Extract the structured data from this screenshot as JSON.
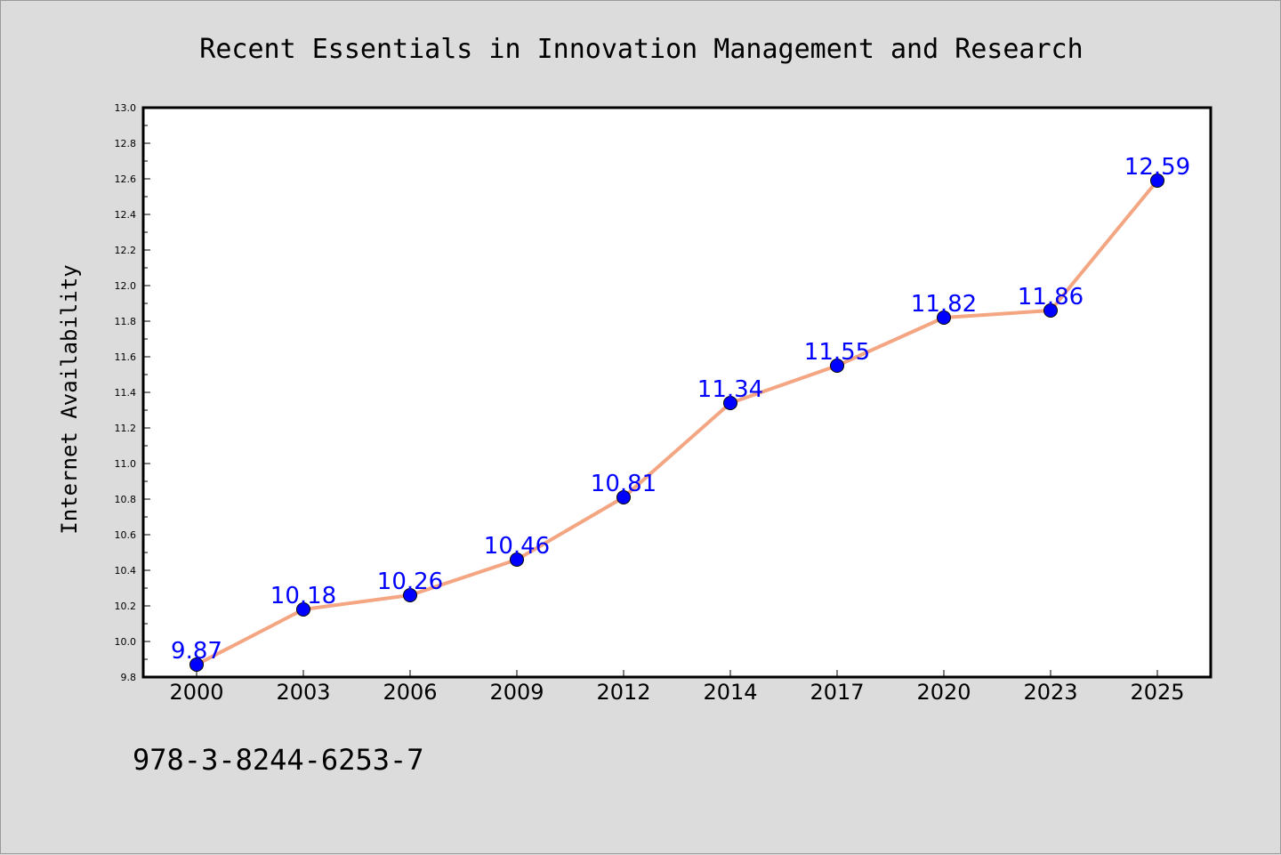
{
  "footer_code": "978-3-8244-6253-7",
  "colors": {
    "background": "#dcdcdc",
    "plot_background": "#ffffff",
    "line": "#f4a582",
    "marker": "#0000ff",
    "data_label": "#0000ff"
  },
  "chart_data": {
    "type": "line",
    "title": "Recent Essentials in Innovation Management and Research",
    "xlabel": "",
    "ylabel": "Internet Availability",
    "categories": [
      "2000",
      "2003",
      "2006",
      "2009",
      "2012",
      "2014",
      "2017",
      "2020",
      "2023",
      "2025"
    ],
    "series": [
      {
        "values": [
          9.87,
          10.18,
          10.26,
          10.46,
          10.81,
          11.34,
          11.55,
          11.82,
          11.86,
          12.59
        ]
      }
    ],
    "data_labels": [
      "9.87",
      "10.18",
      "10.26",
      "10.46",
      "10.81",
      "11.34",
      "11.55",
      "11.82",
      "11.86",
      "12.59"
    ],
    "ylim": [
      9.8,
      13.0
    ],
    "yticks": [
      "9.8",
      "10.0",
      "10.2",
      "10.4",
      "10.6",
      "10.8",
      "11.0",
      "11.2",
      "11.4",
      "11.6",
      "11.8",
      "12.0",
      "12.2",
      "12.4",
      "12.6",
      "12.8",
      "13.0"
    ],
    "grid": false,
    "legend": "none"
  }
}
